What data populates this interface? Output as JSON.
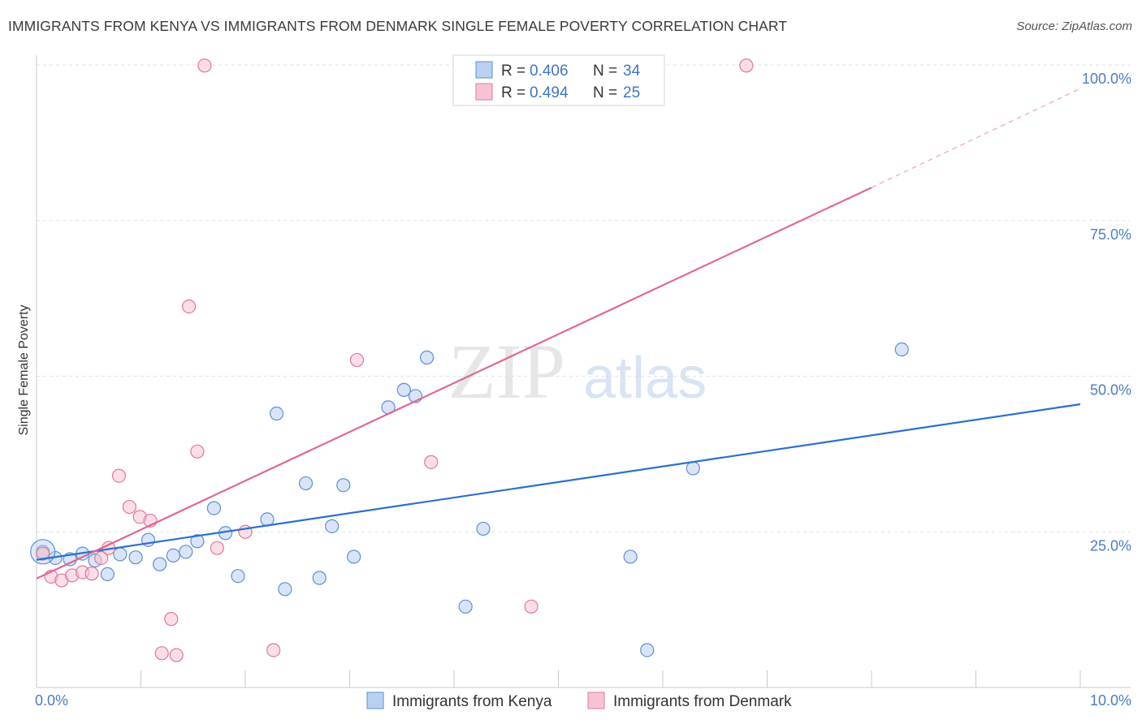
{
  "chart_data": {
    "type": "scatter",
    "title": "IMMIGRANTS FROM KENYA VS IMMIGRANTS FROM DENMARK SINGLE FEMALE POVERTY CORRELATION CHART",
    "source": "Source: ZipAtlas.com",
    "xlabel": "",
    "ylabel": "Single Female Poverty",
    "xlim": [
      0,
      10
    ],
    "ylim": [
      0,
      100
    ],
    "x_tick_labels": {
      "min": "0.0%",
      "max": "10.0%"
    },
    "y_ticks": [
      {
        "value": 25,
        "label": "25.0%"
      },
      {
        "value": 50,
        "label": "50.0%"
      },
      {
        "value": 75,
        "label": "75.0%"
      },
      {
        "value": 100,
        "label": "100.0%"
      }
    ],
    "watermark": {
      "part1": "ZIP",
      "part2": "atlas"
    },
    "legend": {
      "r_label": "R =",
      "n_label": "N =",
      "entries": [
        {
          "name": "Immigrants from Kenya",
          "r": "0.406",
          "n": "34"
        },
        {
          "name": "Immigrants from Denmark",
          "r": "0.494",
          "n": "25"
        }
      ]
    },
    "series": [
      {
        "name": "Immigrants from Kenya",
        "color": "#5b8fd6",
        "fill": "#b9d0f0",
        "trend": {
          "x1": 0.0,
          "y1": 20.5,
          "x2": 10.0,
          "y2": 45.5,
          "color": "#2b6fcf"
        },
        "points": [
          [
            0.06,
            21.8
          ],
          [
            0.18,
            20.8
          ],
          [
            0.32,
            20.6
          ],
          [
            0.44,
            21.5
          ],
          [
            0.56,
            20.4
          ],
          [
            0.68,
            18.2
          ],
          [
            0.8,
            21.4
          ],
          [
            0.95,
            20.9
          ],
          [
            1.07,
            23.7
          ],
          [
            1.18,
            19.8
          ],
          [
            1.31,
            21.2
          ],
          [
            1.43,
            21.8
          ],
          [
            1.54,
            23.5
          ],
          [
            1.7,
            28.8
          ],
          [
            1.81,
            24.8
          ],
          [
            1.93,
            17.9
          ],
          [
            2.21,
            27.0
          ],
          [
            2.3,
            44.0
          ],
          [
            2.38,
            15.8
          ],
          [
            2.58,
            32.8
          ],
          [
            2.71,
            17.6
          ],
          [
            2.83,
            25.9
          ],
          [
            2.94,
            32.5
          ],
          [
            3.04,
            21.0
          ],
          [
            3.37,
            45.0
          ],
          [
            3.52,
            47.8
          ],
          [
            3.63,
            46.8
          ],
          [
            3.74,
            53.0
          ],
          [
            4.11,
            13.0
          ],
          [
            4.28,
            25.5
          ],
          [
            5.69,
            21.0
          ],
          [
            5.85,
            6.0
          ],
          [
            6.29,
            35.2
          ],
          [
            8.29,
            54.3
          ]
        ]
      },
      {
        "name": "Immigrants from Denmark",
        "color": "#e07898",
        "fill": "#f7c3d3",
        "trend": {
          "x1": 0.0,
          "y1": 17.5,
          "x2": 8.0,
          "y2": 80.3,
          "dash_to_x": 10.0,
          "dash_to_y": 96.2,
          "color": "#e0688f"
        },
        "points": [
          [
            0.06,
            21.5
          ],
          [
            0.14,
            17.8
          ],
          [
            0.24,
            17.2
          ],
          [
            0.34,
            18.0
          ],
          [
            0.44,
            18.5
          ],
          [
            0.53,
            18.3
          ],
          [
            0.62,
            20.8
          ],
          [
            0.69,
            22.4
          ],
          [
            0.79,
            34.0
          ],
          [
            0.89,
            29.0
          ],
          [
            0.99,
            27.4
          ],
          [
            1.09,
            26.8
          ],
          [
            1.29,
            11.0
          ],
          [
            1.2,
            5.5
          ],
          [
            1.34,
            5.2
          ],
          [
            1.46,
            61.2
          ],
          [
            1.54,
            37.9
          ],
          [
            1.61,
            99.9
          ],
          [
            1.73,
            22.4
          ],
          [
            2.0,
            25.0
          ],
          [
            2.27,
            6.0
          ],
          [
            3.07,
            52.6
          ],
          [
            3.78,
            36.2
          ],
          [
            4.74,
            13.0
          ],
          [
            6.8,
            99.9
          ]
        ]
      }
    ]
  }
}
